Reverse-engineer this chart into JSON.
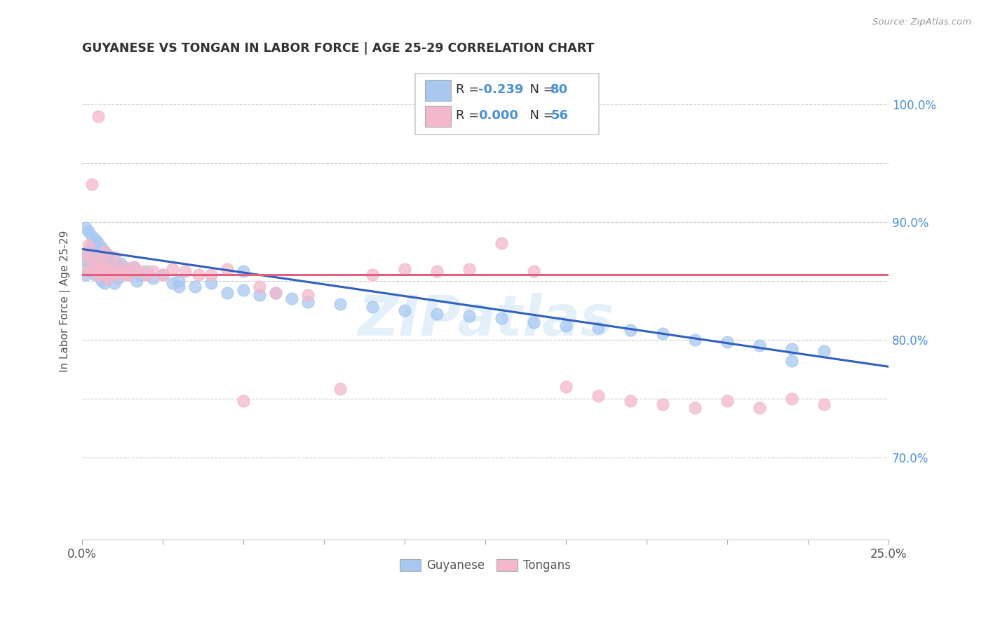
{
  "title": "GUYANESE VS TONGAN IN LABOR FORCE | AGE 25-29 CORRELATION CHART",
  "source": "Source: ZipAtlas.com",
  "ylabel": "In Labor Force | Age 25-29",
  "xlim": [
    0.0,
    0.25
  ],
  "ylim": [
    0.63,
    1.035
  ],
  "guyanese_color": "#a8c8f0",
  "tongan_color": "#f4b8cc",
  "guyanese_line_color": "#3060c0",
  "tongan_line_color": "#e06080",
  "legend_label_guyanese": "Guyanese",
  "legend_label_tongan": "Tongans",
  "R_guyanese": -0.239,
  "N_guyanese": 80,
  "R_tongan": 0.0,
  "N_tongan": 56,
  "watermark": "ZIPatlas",
  "guyanese_x": [
    0.001,
    0.001,
    0.001,
    0.002,
    0.002,
    0.002,
    0.003,
    0.003,
    0.003,
    0.004,
    0.004,
    0.004,
    0.005,
    0.005,
    0.005,
    0.005,
    0.006,
    0.006,
    0.006,
    0.007,
    0.007,
    0.007,
    0.008,
    0.008,
    0.009,
    0.009,
    0.01,
    0.01,
    0.011,
    0.012,
    0.013,
    0.014,
    0.015,
    0.016,
    0.017,
    0.018,
    0.02,
    0.022,
    0.025,
    0.028,
    0.03,
    0.035,
    0.04,
    0.045,
    0.05,
    0.055,
    0.06,
    0.065,
    0.07,
    0.08,
    0.09,
    0.1,
    0.11,
    0.12,
    0.13,
    0.14,
    0.15,
    0.16,
    0.17,
    0.18,
    0.19,
    0.2,
    0.21,
    0.22,
    0.23,
    0.001,
    0.002,
    0.003,
    0.004,
    0.005,
    0.006,
    0.007,
    0.008,
    0.01,
    0.012,
    0.015,
    0.02,
    0.03,
    0.05,
    0.22
  ],
  "guyanese_y": [
    0.87,
    0.855,
    0.862,
    0.875,
    0.865,
    0.858,
    0.88,
    0.87,
    0.862,
    0.872,
    0.86,
    0.855,
    0.875,
    0.868,
    0.862,
    0.855,
    0.87,
    0.86,
    0.85,
    0.865,
    0.855,
    0.848,
    0.86,
    0.852,
    0.862,
    0.855,
    0.858,
    0.848,
    0.852,
    0.858,
    0.862,
    0.855,
    0.858,
    0.862,
    0.85,
    0.855,
    0.858,
    0.852,
    0.855,
    0.848,
    0.85,
    0.845,
    0.848,
    0.84,
    0.842,
    0.838,
    0.84,
    0.835,
    0.832,
    0.83,
    0.828,
    0.825,
    0.822,
    0.82,
    0.818,
    0.815,
    0.812,
    0.81,
    0.808,
    0.805,
    0.8,
    0.798,
    0.795,
    0.792,
    0.79,
    0.895,
    0.892,
    0.888,
    0.885,
    0.882,
    0.878,
    0.875,
    0.872,
    0.868,
    0.865,
    0.86,
    0.855,
    0.845,
    0.858,
    0.782
  ],
  "tongan_x": [
    0.001,
    0.001,
    0.002,
    0.003,
    0.003,
    0.004,
    0.004,
    0.005,
    0.005,
    0.006,
    0.006,
    0.007,
    0.007,
    0.008,
    0.008,
    0.009,
    0.01,
    0.011,
    0.012,
    0.013,
    0.014,
    0.015,
    0.016,
    0.018,
    0.02,
    0.022,
    0.025,
    0.028,
    0.032,
    0.036,
    0.04,
    0.045,
    0.05,
    0.055,
    0.06,
    0.07,
    0.08,
    0.09,
    0.1,
    0.11,
    0.12,
    0.13,
    0.14,
    0.15,
    0.16,
    0.17,
    0.18,
    0.19,
    0.2,
    0.21,
    0.22,
    0.23,
    0.003,
    0.005,
    0.007,
    0.01
  ],
  "tongan_y": [
    0.87,
    0.858,
    0.88,
    0.872,
    0.86,
    0.865,
    0.858,
    0.862,
    0.855,
    0.868,
    0.858,
    0.862,
    0.855,
    0.86,
    0.852,
    0.858,
    0.86,
    0.855,
    0.858,
    0.862,
    0.855,
    0.858,
    0.862,
    0.858,
    0.855,
    0.858,
    0.855,
    0.86,
    0.858,
    0.855,
    0.855,
    0.86,
    0.748,
    0.845,
    0.84,
    0.838,
    0.758,
    0.855,
    0.86,
    0.858,
    0.86,
    0.882,
    0.858,
    0.76,
    0.752,
    0.748,
    0.745,
    0.742,
    0.748,
    0.742,
    0.75,
    0.745,
    0.932,
    0.99,
    0.875,
    0.87
  ],
  "ytick_positions": [
    0.7,
    0.75,
    0.8,
    0.85,
    0.9,
    0.95,
    1.0
  ],
  "ytick_labels": [
    "70.0%",
    "",
    "80.0%",
    "",
    "90.0%",
    "",
    "100.0%"
  ],
  "xtick_positions": [
    0.0,
    0.025,
    0.05,
    0.075,
    0.1,
    0.125,
    0.15,
    0.175,
    0.2,
    0.225,
    0.25
  ]
}
